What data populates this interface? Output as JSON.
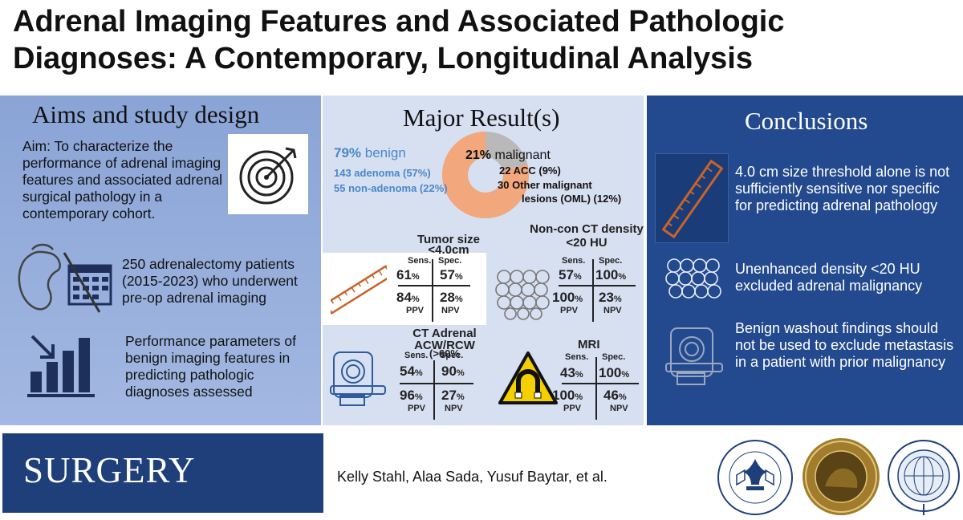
{
  "title": {
    "line1": "Adrenal Imaging Features and Associated Pathologic",
    "line2": "Diagnoses: A Contemporary, Longitudinal Analysis"
  },
  "aims": {
    "heading": "Aims and study design",
    "aim_text": "Aim: To characterize the performance of adrenal imaging features and associated adrenal surgical pathology in a contemporary cohort.",
    "patients_text": "250 adrenalectomy patients (2015-2023) who underwent pre-op adrenal imaging",
    "performance_text": "Performance parameters of benign imaging features in predicting pathologic diagnoses assessed",
    "icons": [
      "target-icon",
      "kidney-calendar-icon",
      "bar-chart-icon"
    ]
  },
  "results": {
    "heading": "Major Result(s)",
    "donut": {
      "benign_pct": "79%",
      "benign_label": "benign",
      "adenoma": "143 adenoma (57%)",
      "non_adenoma": "55 non-adenoma (22%)",
      "malignant_pct": "21%",
      "malignant_label": "malignant",
      "acc": "22 ACC (9%)",
      "oml_line1": "30 Other malignant",
      "oml_line2": "lesions (OML) (12%)",
      "benign_fraction": 0.79,
      "benign_color": "#f2a77c",
      "malignant_color": "#b9b9b9"
    },
    "labels": {
      "sens": "Sens.",
      "spec": "Spec.",
      "ppv": "PPV",
      "npv": "NPV",
      "pct": "%"
    },
    "tumor": {
      "title1": "Tumor size",
      "title2": "<4.0cm",
      "sens": "61",
      "spec": "57",
      "ppv": "84",
      "npv": "28"
    },
    "ct": {
      "title1": "Non-con CT density",
      "title2": "<20 HU",
      "sens": "57",
      "spec": "100",
      "ppv": "100",
      "npv": "23"
    },
    "washout": {
      "title1": "CT Adrenal",
      "title2": "ACW/RCW",
      "title3": "(>60%",
      "sens": "54",
      "spec": "90",
      "ppv": "96",
      "npv": "27"
    },
    "mri": {
      "title1": "MRI",
      "sens": "43",
      "spec": "100",
      "ppv": "100",
      "npv": "46"
    }
  },
  "conclusions": {
    "heading": "Conclusions",
    "c1": "4.0 cm size threshold alone is not sufficiently sensitive nor specific for predicting adrenal pathology",
    "c2": "Unenhanced density <20 HU excluded adrenal malignancy",
    "c3": "Benign washout findings should not be used to exclude metastasis in a patient with prior malignancy"
  },
  "footer": {
    "journal": "SURGERY",
    "authors": "Kelly Stahl, Alaa Sada, Yusuf Baytar, et al.",
    "seal1_text": "SOCIETY OF UNIVERSITY SURGEONS",
    "seal2_text": "THE CENTRAL SURGICAL ASSOCIATION 1940",
    "seal3_text": "AMERICAN ASSOCIATION OF ENDOCRINE SURGEONS"
  },
  "colors": {
    "left_panel": "#8aa4d6",
    "mid_panel": "#d7e0f1",
    "right_panel": "#234a8e",
    "journal_bg": "#1f3f7a",
    "ruler": "#c8642a",
    "blue_text": "#4a87c9"
  }
}
